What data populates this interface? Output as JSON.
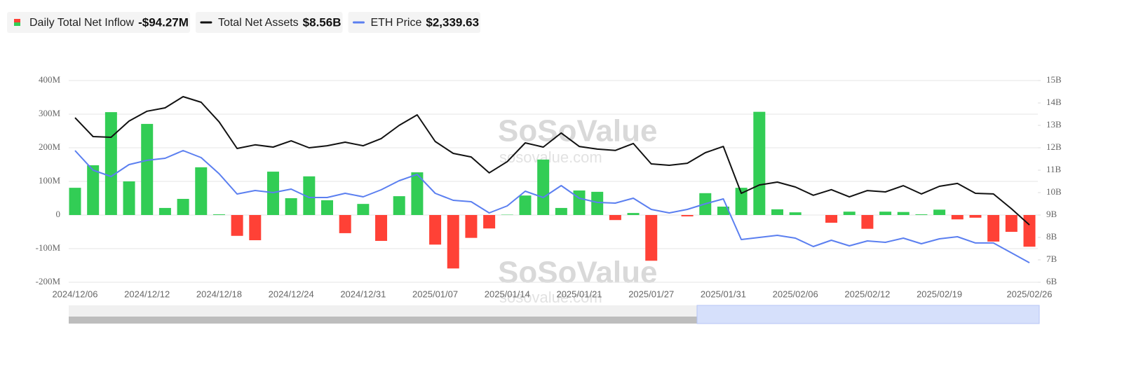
{
  "chart_data": {
    "type": "bar_line",
    "watermark": "SoSoValue",
    "watermark_url": "sosovalue.com",
    "categories": [
      "2024/12/06",
      null,
      null,
      null,
      "2024/12/12",
      null,
      null,
      null,
      "2024/12/18",
      null,
      null,
      null,
      "2024/12/24",
      null,
      null,
      null,
      "2024/12/31",
      null,
      null,
      null,
      "2025/01/07",
      null,
      null,
      null,
      "2025/01/14",
      null,
      null,
      null,
      "2025/01/21",
      null,
      null,
      null,
      "2025/01/27",
      null,
      null,
      null,
      "2025/01/31",
      null,
      null,
      null,
      "2025/02/06",
      null,
      null,
      null,
      "2025/02/12",
      null,
      null,
      null,
      "2025/02/19",
      null,
      null,
      null,
      null,
      "2025/02/26"
    ],
    "ylim": [
      -200,
      400
    ],
    "yticks": [
      {
        "value": -200,
        "label": "-200M"
      },
      {
        "value": -100,
        "label": "-100M"
      },
      0,
      {
        "value": 100,
        "label": "100M"
      },
      {
        "value": 200,
        "label": "200M"
      },
      {
        "value": 300,
        "label": "300M"
      },
      {
        "value": 400,
        "label": "400M"
      }
    ],
    "y2lim": [
      6,
      15
    ],
    "y2ticks": [
      {
        "value": 6,
        "label": "6B"
      },
      {
        "value": 7,
        "label": "7B"
      },
      {
        "value": 8,
        "label": "8B"
      },
      {
        "value": 9,
        "label": "9B"
      },
      {
        "value": 10,
        "label": "10B"
      },
      {
        "value": 11,
        "label": "11B"
      },
      {
        "value": 12,
        "label": "12B"
      },
      {
        "value": 13,
        "label": "13B"
      },
      {
        "value": 14,
        "label": "14B"
      },
      {
        "value": 15,
        "label": "15B"
      }
    ],
    "y3lim": [
      2050,
      5045
    ],
    "grid": true,
    "series": [
      {
        "name": "Daily Total Net Inflow",
        "legend_value": "-$94.27M",
        "type": "bar",
        "color": "#32cd55",
        "negative_color": "#ff4136",
        "values": [
          81,
          148,
          306,
          100,
          271,
          21,
          48,
          142,
          2,
          -62,
          -75,
          129,
          50,
          115,
          44,
          -54,
          33,
          -77,
          56,
          127,
          -88,
          -159,
          -68,
          -40,
          1,
          58,
          165,
          21,
          73,
          69,
          -15,
          6,
          -136,
          0,
          -4,
          65,
          25,
          81,
          307,
          17,
          8,
          0,
          -23,
          10,
          -41,
          10,
          9,
          2,
          16,
          -13,
          -8,
          -79,
          -50,
          -94.27
        ]
      },
      {
        "name": "Total Net Assets",
        "legend_value": "$8.56B",
        "type": "line",
        "axis": "y2",
        "color": "#111111",
        "values": [
          13.34,
          12.5,
          12.47,
          13.19,
          13.63,
          13.78,
          14.28,
          14.03,
          13.16,
          11.97,
          12.13,
          12.03,
          12.31,
          12.0,
          12.09,
          12.25,
          12.09,
          12.41,
          13.0,
          13.47,
          12.28,
          11.75,
          11.59,
          10.88,
          11.38,
          12.22,
          12.03,
          12.66,
          12.06,
          11.94,
          11.88,
          12.19,
          11.28,
          11.22,
          11.31,
          11.78,
          12.06,
          9.97,
          10.34,
          10.47,
          10.25,
          9.88,
          10.13,
          9.81,
          10.09,
          10.03,
          10.31,
          9.94,
          10.28,
          10.41,
          9.97,
          9.94,
          9.28,
          8.56
        ]
      },
      {
        "name": "ETH Price",
        "legend_value": "$2,339.63",
        "type": "line",
        "axis": "y3",
        "color": "#5b7ff0",
        "values": [
          4005,
          3714,
          3620,
          3797,
          3860,
          3891,
          4005,
          3901,
          3662,
          3360,
          3412,
          3381,
          3433,
          3308,
          3308,
          3371,
          3319,
          3423,
          3558,
          3652,
          3371,
          3267,
          3246,
          3080,
          3184,
          3402,
          3308,
          3485,
          3298,
          3236,
          3225,
          3298,
          3132,
          3080,
          3132,
          3215,
          3288,
          2684,
          2716,
          2747,
          2705,
          2580,
          2674,
          2591,
          2664,
          2643,
          2705,
          2622,
          2695,
          2726,
          2633,
          2633,
          2487,
          2339.63
        ]
      }
    ]
  }
}
